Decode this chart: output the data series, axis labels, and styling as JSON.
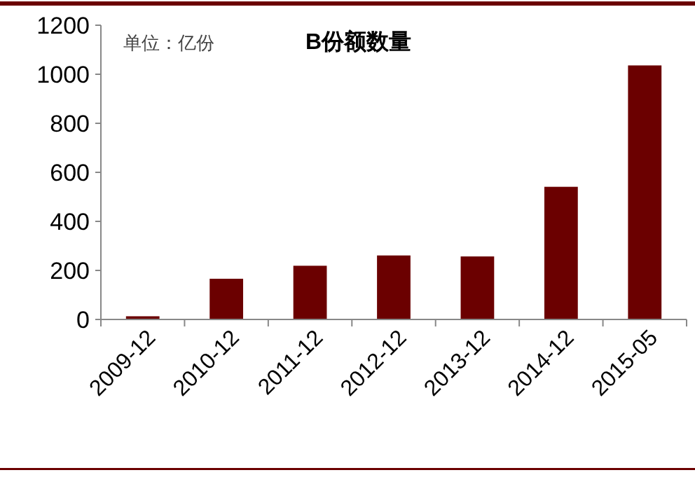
{
  "chart_data": {
    "type": "bar",
    "title": "B份额数量",
    "annotations": [
      "单位：亿份"
    ],
    "categories": [
      "2009-12",
      "2010-12",
      "2011-12",
      "2012-12",
      "2013-12",
      "2014-12",
      "2015-05"
    ],
    "values": [
      13,
      166,
      219,
      261,
      257,
      541,
      1036
    ],
    "color": "#6b0000",
    "ylim": [
      0,
      1200
    ],
    "yticks": [
      0,
      200,
      400,
      600,
      800,
      1000,
      1200
    ],
    "grid": false
  }
}
